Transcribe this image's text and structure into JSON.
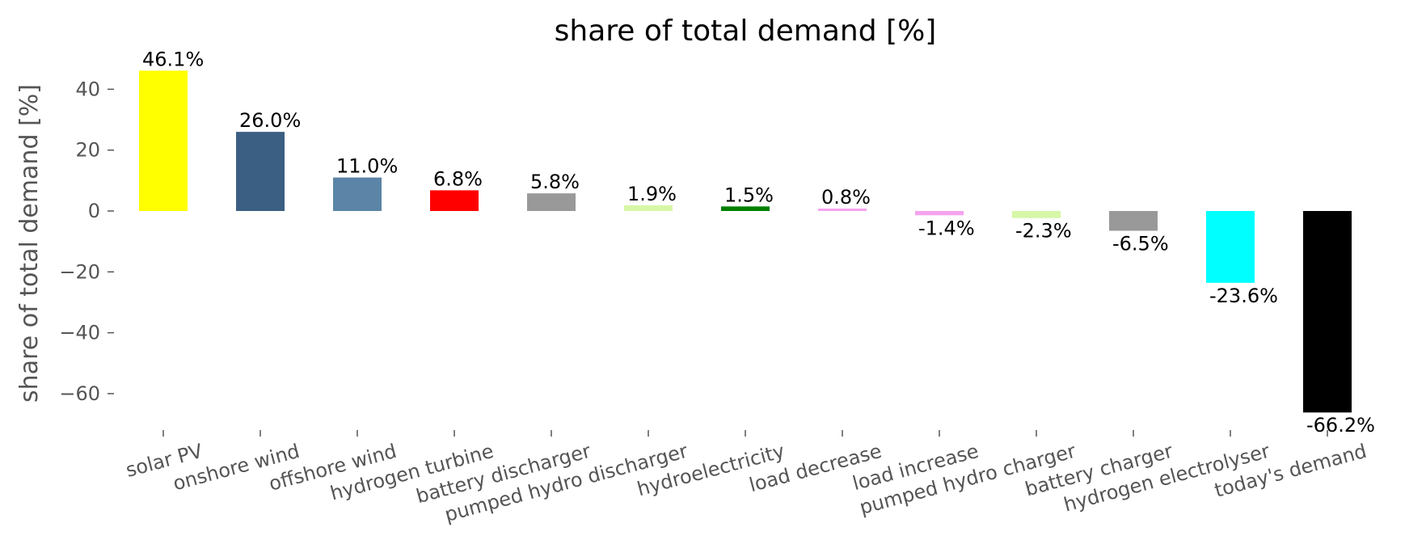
{
  "chart_data": {
    "type": "bar",
    "title": "share of total demand [%]",
    "xlabel": "",
    "ylabel": "share of total demand [%]",
    "ylim": [
      -72,
      50
    ],
    "yticks": [
      40,
      20,
      0,
      -20,
      -40,
      -60
    ],
    "ytick_labels": [
      "40",
      "20",
      "0",
      "−20",
      "−40",
      "−60"
    ],
    "grid": false,
    "categories": [
      "solar PV",
      "onshore wind",
      "offshore wind",
      "hydrogen turbine",
      "battery discharger",
      "pumped hydro discharger",
      "hydroelectricity",
      "load decrease",
      "load increase",
      "pumped hydro charger",
      "battery charger",
      "hydrogen electrolyser",
      "today's demand"
    ],
    "values": [
      46.1,
      26.0,
      11.0,
      6.8,
      5.8,
      1.9,
      1.5,
      0.8,
      -1.4,
      -2.3,
      -6.5,
      -23.6,
      -66.2
    ],
    "data_labels": [
      "46.1%",
      "26.0%",
      "11.0%",
      "6.8%",
      "5.8%",
      "1.9%",
      "1.5%",
      "0.8%",
      "-1.4%",
      "-2.3%",
      "-6.5%",
      "-23.6%",
      "-66.2%"
    ],
    "colors": [
      "#ffff00",
      "#3b5f82",
      "#5b84a6",
      "#ff0000",
      "#999999",
      "#d6f7a6",
      "#007f00",
      "#f5a3f0",
      "#f5a3f0",
      "#d6f7a6",
      "#999999",
      "#00ffff",
      "#000000"
    ]
  }
}
